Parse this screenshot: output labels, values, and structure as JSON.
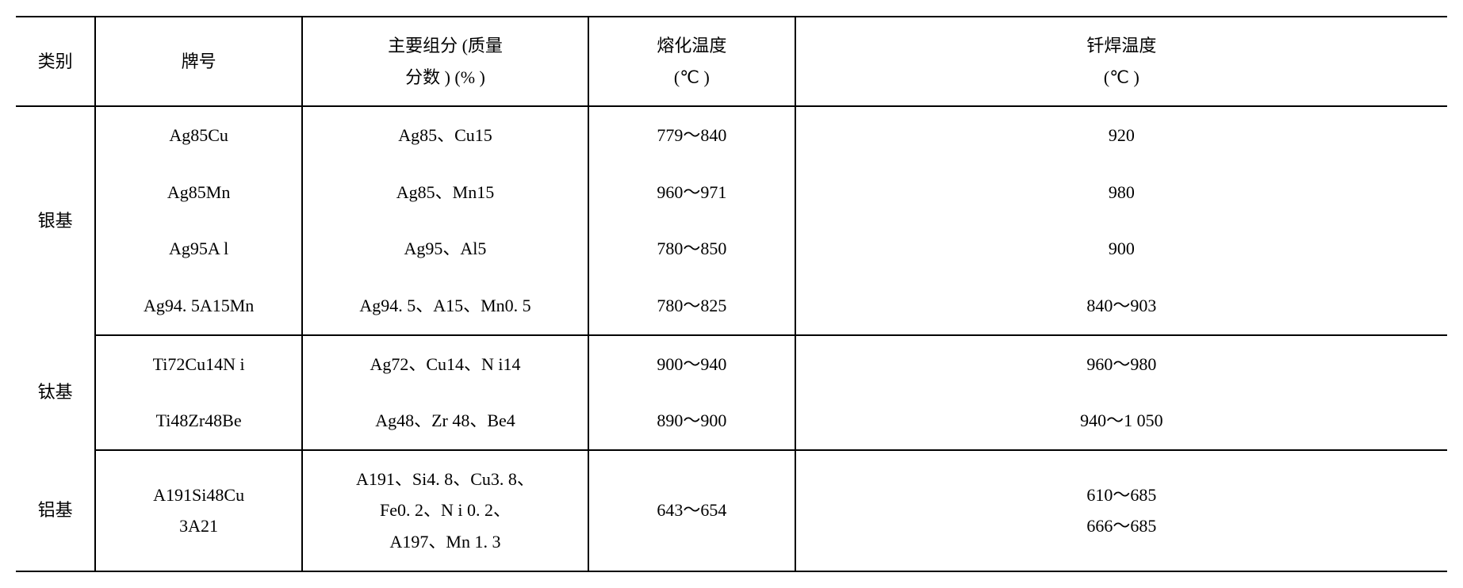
{
  "table": {
    "font_family": "SimSun",
    "font_size_pt": 16,
    "text_color": "#000000",
    "background_color": "#ffffff",
    "border_color": "#000000",
    "columns": {
      "category": "类别",
      "grade": "牌号",
      "composition_line1": "主要组分 (质量",
      "composition_line2": "分数 ) (% )",
      "melt_temp_line1": "熔化温度",
      "melt_temp_line2": "(℃ )",
      "braze_temp_line1": "钎焊温度",
      "braze_temp_line2": "(℃ )"
    },
    "groups": [
      {
        "category": "银基",
        "rows": [
          {
            "grade": "Ag85Cu",
            "composition": "Ag85、Cu15",
            "melt": "779～840",
            "braze": "920"
          },
          {
            "grade": "Ag85Mn",
            "composition": "Ag85、Mn15",
            "melt": "960～971",
            "braze": "980"
          },
          {
            "grade": "Ag95A l",
            "composition": "Ag95、Al5",
            "melt": "780～850",
            "braze": "900"
          },
          {
            "grade": "Ag94. 5A15Mn",
            "composition": "Ag94. 5、A15、Mn0. 5",
            "melt": "780～825",
            "braze": "840～903"
          }
        ]
      },
      {
        "category": "钛基",
        "rows": [
          {
            "grade": "Ti72Cu14N i",
            "composition": "Ag72、Cu14、N i14",
            "melt": "900～940",
            "braze": "960～980"
          },
          {
            "grade": "Ti48Zr48Be",
            "composition": "Ag48、Zr 48、Be4",
            "melt": "890～900",
            "braze": "940～1 050"
          }
        ]
      },
      {
        "category": "铝基",
        "rows": [
          {
            "grade": "A191Si48Cu\n3A21",
            "composition": "A191、Si4. 8、Cu3. 8、\nFe0. 2、N i 0. 2、\nA197、Mn 1. 3",
            "melt": "643～654",
            "braze": "610～685\n666～685"
          }
        ]
      }
    ]
  }
}
